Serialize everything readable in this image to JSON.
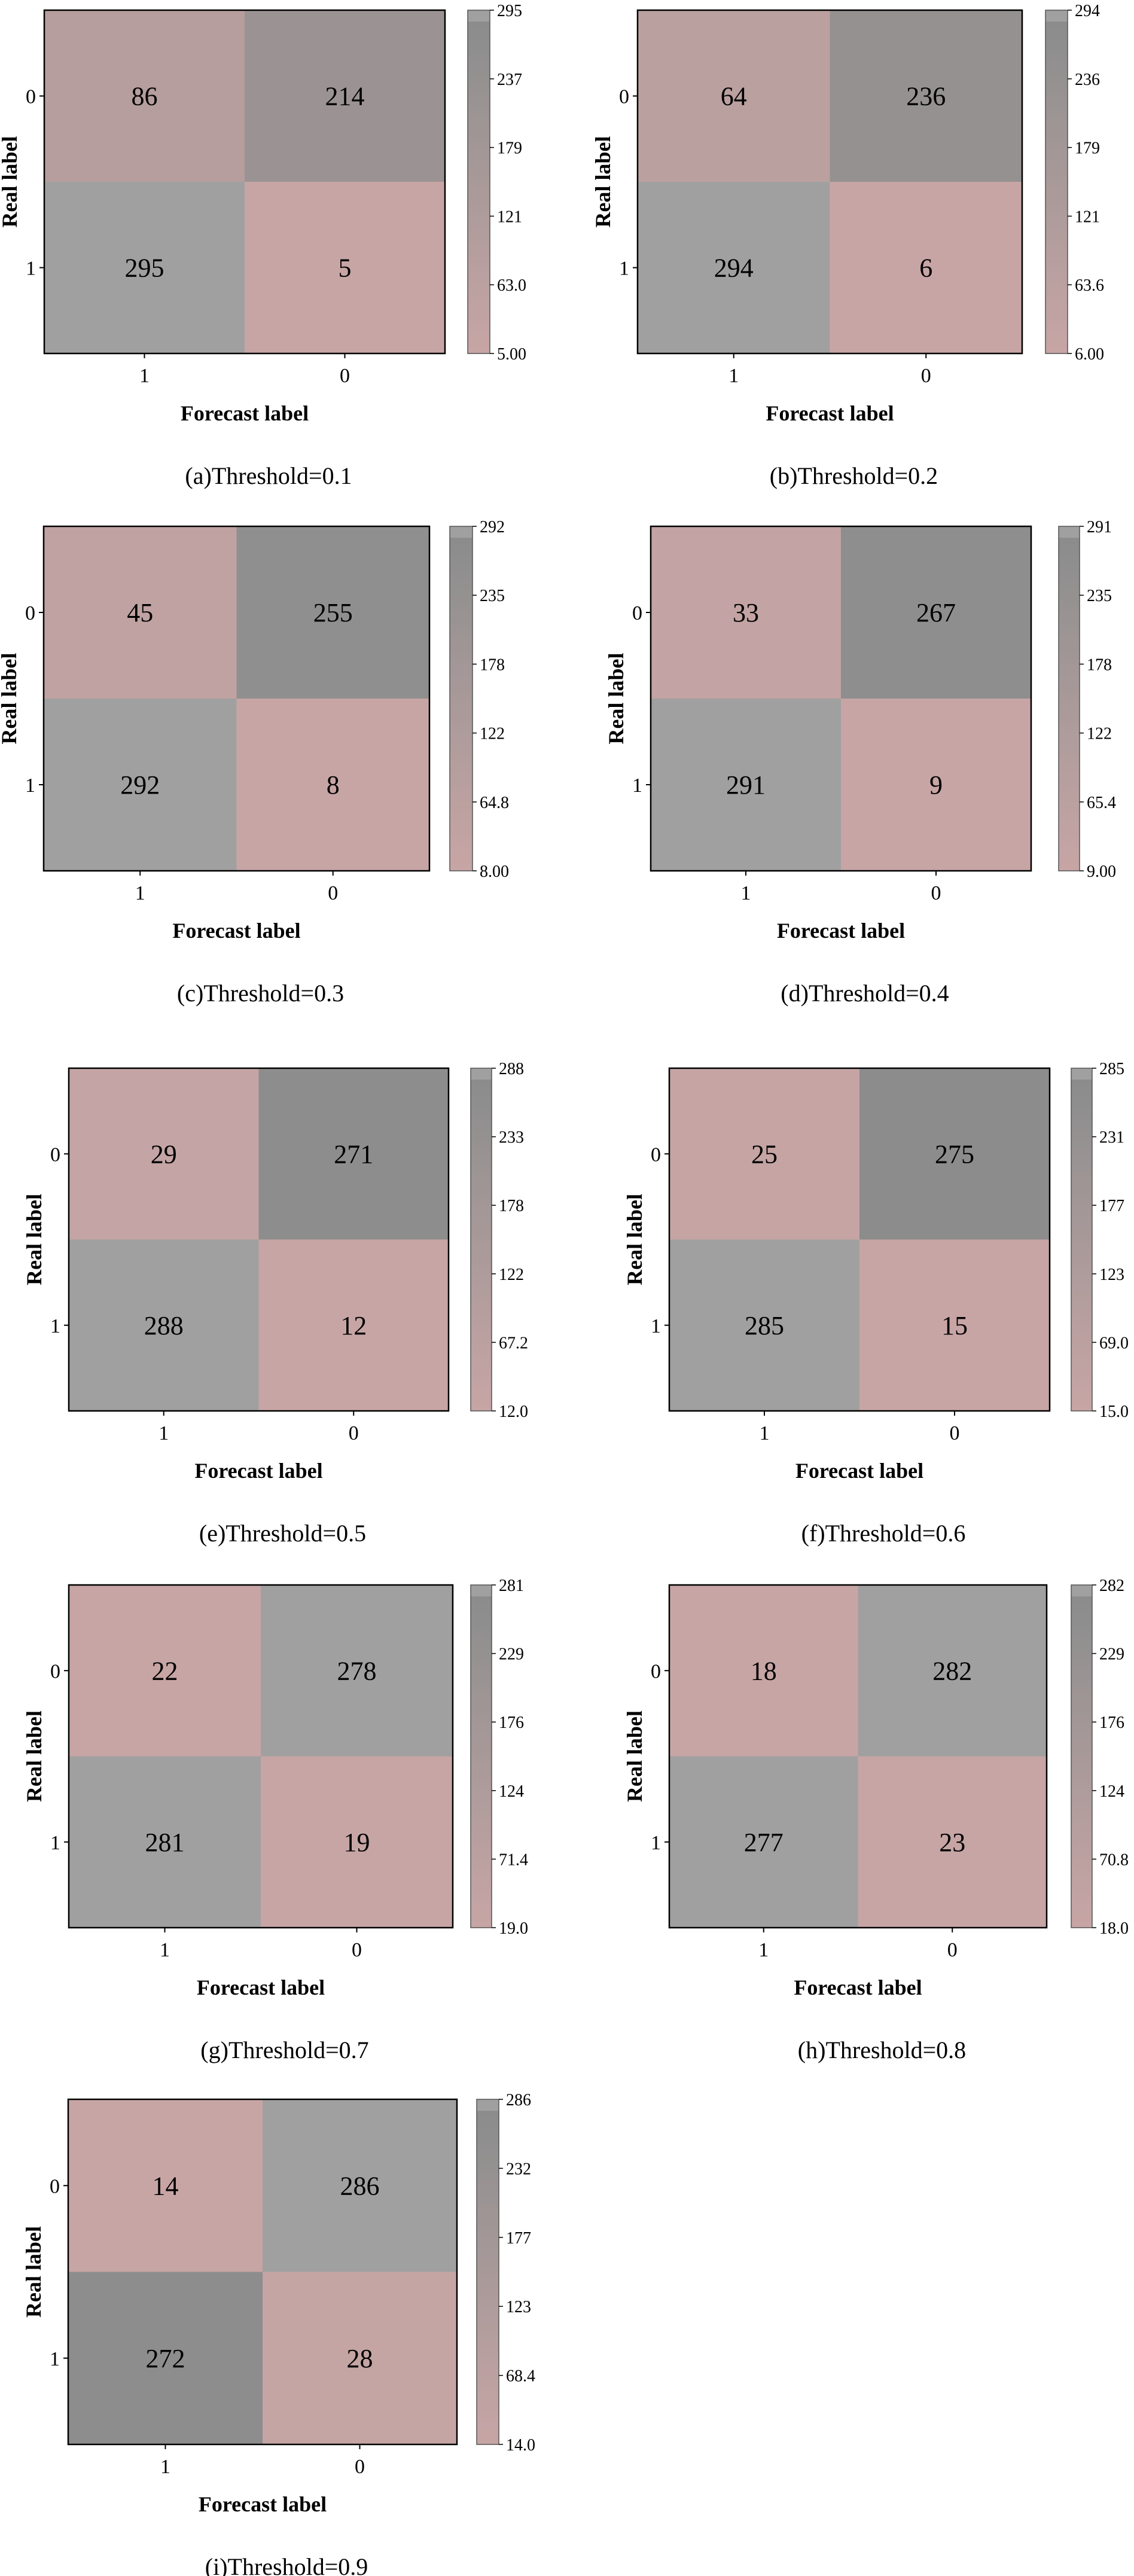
{
  "colors": {
    "low": "#c8a5a5",
    "mid_low": "#b59e9e",
    "mid": "#9c9494",
    "high_dark": "#8c8c8c",
    "max": "#a0a0a0",
    "frame": "#000000"
  },
  "chart_data": [
    {
      "type": "heatmap",
      "title": "(a)Threshold=0.1",
      "xlabel": "Forecast label",
      "ylabel": "Real label",
      "x_categories": [
        "1",
        "0"
      ],
      "y_categories": [
        "0",
        "1"
      ],
      "values": [
        [
          86,
          214
        ],
        [
          295,
          5
        ]
      ],
      "colorbar": {
        "min": 5,
        "max": 295,
        "ticks": [
          "5.00",
          "63.0",
          "121",
          "179",
          "237",
          "295"
        ]
      }
    },
    {
      "type": "heatmap",
      "title": "(b)Threshold=0.2",
      "xlabel": "Forecast label",
      "ylabel": "Real label",
      "x_categories": [
        "1",
        "0"
      ],
      "y_categories": [
        "0",
        "1"
      ],
      "values": [
        [
          64,
          236
        ],
        [
          294,
          6
        ]
      ],
      "colorbar": {
        "min": 6,
        "max": 294,
        "ticks": [
          "6.00",
          "63.6",
          "121",
          "179",
          "236",
          "294"
        ]
      }
    },
    {
      "type": "heatmap",
      "title": "(c)Threshold=0.3",
      "xlabel": "Forecast label",
      "ylabel": "Real label",
      "x_categories": [
        "1",
        "0"
      ],
      "y_categories": [
        "0",
        "1"
      ],
      "values": [
        [
          45,
          255
        ],
        [
          292,
          8
        ]
      ],
      "colorbar": {
        "min": 8,
        "max": 292,
        "ticks": [
          "8.00",
          "64.8",
          "122",
          "178",
          "235",
          "292"
        ]
      }
    },
    {
      "type": "heatmap",
      "title": "(d)Threshold=0.4",
      "xlabel": "Forecast label",
      "ylabel": "Real label",
      "x_categories": [
        "1",
        "0"
      ],
      "y_categories": [
        "0",
        "1"
      ],
      "values": [
        [
          33,
          267
        ],
        [
          291,
          9
        ]
      ],
      "colorbar": {
        "min": 9,
        "max": 291,
        "ticks": [
          "9.00",
          "65.4",
          "122",
          "178",
          "235",
          "291"
        ]
      }
    },
    {
      "type": "heatmap",
      "title": "(e)Threshold=0.5",
      "xlabel": "Forecast label",
      "ylabel": "Real label",
      "x_categories": [
        "1",
        "0"
      ],
      "y_categories": [
        "0",
        "1"
      ],
      "values": [
        [
          29,
          271
        ],
        [
          288,
          12
        ]
      ],
      "colorbar": {
        "min": 12,
        "max": 288,
        "ticks": [
          "12.0",
          "67.2",
          "122",
          "178",
          "233",
          "288"
        ]
      }
    },
    {
      "type": "heatmap",
      "title": "(f)Threshold=0.6",
      "xlabel": "Forecast label",
      "ylabel": "Real label",
      "x_categories": [
        "1",
        "0"
      ],
      "y_categories": [
        "0",
        "1"
      ],
      "values": [
        [
          25,
          275
        ],
        [
          285,
          15
        ]
      ],
      "colorbar": {
        "min": 15,
        "max": 285,
        "ticks": [
          "15.0",
          "69.0",
          "123",
          "177",
          "231",
          "285"
        ]
      }
    },
    {
      "type": "heatmap",
      "title": "(g)Threshold=0.7",
      "xlabel": "Forecast label",
      "ylabel": "Real label",
      "x_categories": [
        "1",
        "0"
      ],
      "y_categories": [
        "0",
        "1"
      ],
      "values": [
        [
          22,
          278
        ],
        [
          281,
          19
        ]
      ],
      "colorbar": {
        "min": 19,
        "max": 281,
        "ticks": [
          "19.0",
          "71.4",
          "124",
          "176",
          "229",
          "281"
        ]
      }
    },
    {
      "type": "heatmap",
      "title": "(h)Threshold=0.8",
      "xlabel": "Forecast label",
      "ylabel": "Real label",
      "x_categories": [
        "1",
        "0"
      ],
      "y_categories": [
        "0",
        "1"
      ],
      "values": [
        [
          18,
          282
        ],
        [
          277,
          23
        ]
      ],
      "colorbar": {
        "min": 18,
        "max": 282,
        "ticks": [
          "18.0",
          "70.8",
          "124",
          "176",
          "229",
          "282"
        ]
      }
    },
    {
      "type": "heatmap",
      "title": "(i)Threshold=0.9",
      "xlabel": "Forecast label",
      "ylabel": "Real label",
      "x_categories": [
        "1",
        "0"
      ],
      "y_categories": [
        "0",
        "1"
      ],
      "values": [
        [
          14,
          286
        ],
        [
          272,
          28
        ]
      ],
      "colorbar": {
        "min": 14,
        "max": 286,
        "ticks": [
          "14.0",
          "68.4",
          "123",
          "177",
          "232",
          "286"
        ]
      }
    }
  ]
}
